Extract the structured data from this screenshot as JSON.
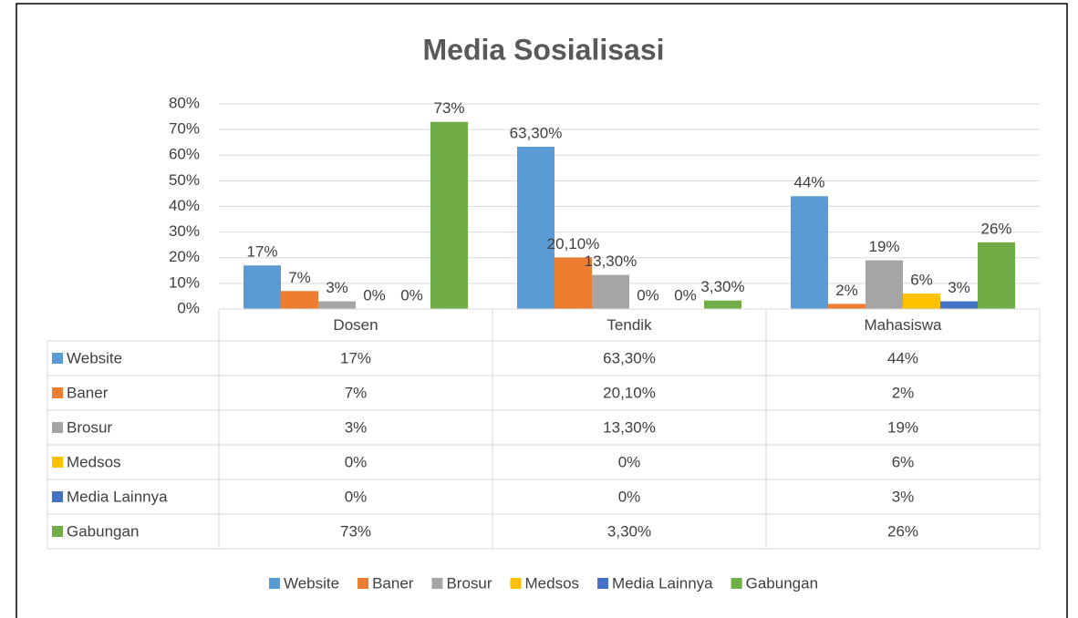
{
  "chart_data": {
    "type": "bar",
    "title": "Media Sosialisasi",
    "categories": [
      "Dosen",
      "Tendik",
      "Mahasiswa"
    ],
    "ylim": [
      0,
      80
    ],
    "yticks": [
      {
        "value": 0,
        "label": "0%"
      },
      {
        "value": 10,
        "label": "10%"
      },
      {
        "value": 20,
        "label": "20%"
      },
      {
        "value": 30,
        "label": "30%"
      },
      {
        "value": 40,
        "label": "40%"
      },
      {
        "value": 50,
        "label": "50%"
      },
      {
        "value": 60,
        "label": "60%"
      },
      {
        "value": 70,
        "label": "70%"
      },
      {
        "value": 80,
        "label": "80%"
      }
    ],
    "grid": true,
    "series": [
      {
        "name": "Website",
        "color": "#5b9bd5",
        "values": [
          17,
          63.3,
          44
        ],
        "value_labels": [
          "17%",
          "63,30%",
          "44%"
        ]
      },
      {
        "name": "Baner",
        "color": "#ed7d31",
        "values": [
          7,
          20.1,
          2
        ],
        "value_labels": [
          "7%",
          "20,10%",
          "2%"
        ]
      },
      {
        "name": "Brosur",
        "color": "#a5a5a5",
        "values": [
          3,
          13.3,
          19
        ],
        "value_labels": [
          "3%",
          "13,30%",
          "19%"
        ]
      },
      {
        "name": "Medsos",
        "color": "#ffc000",
        "values": [
          0,
          0,
          6
        ],
        "value_labels": [
          "0%",
          "0%",
          "6%"
        ]
      },
      {
        "name": "Media Lainnya",
        "color": "#4472c4",
        "values": [
          0,
          0,
          3
        ],
        "value_labels": [
          "0%",
          "0%",
          "3%"
        ]
      },
      {
        "name": "Gabungan",
        "color": "#70ad47",
        "values": [
          73,
          3.3,
          26
        ],
        "value_labels": [
          "73%",
          "3,30%",
          "26%"
        ]
      }
    ]
  }
}
